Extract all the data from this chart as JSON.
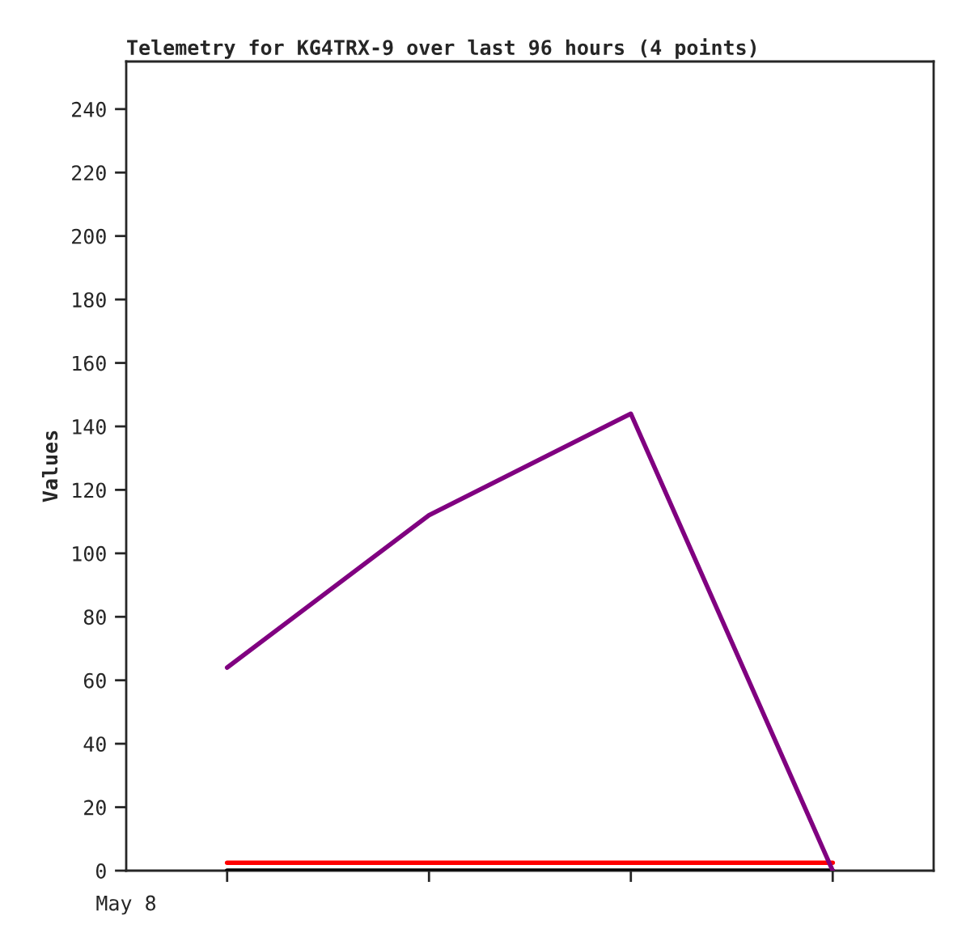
{
  "chart_data": {
    "type": "line",
    "title": "Telemetry for KG4TRX-9 over last 96 hours (4 points)",
    "ylabel": "Values",
    "categories": [
      null,
      null,
      null,
      null
    ],
    "annotations": [
      "May 8"
    ],
    "series": [
      {
        "color": "#800080",
        "values": [
          64,
          112,
          144,
          0
        ]
      },
      {
        "color": "#ff0000",
        "values": [
          2.5,
          2.5,
          2.5,
          2.5
        ]
      },
      {
        "color": "#000000",
        "values": [
          0,
          0,
          0,
          0
        ]
      }
    ],
    "ylim": [
      0,
      255
    ],
    "yticks": [
      0,
      20,
      40,
      60,
      80,
      100,
      120,
      140,
      160,
      180,
      200,
      220,
      240
    ],
    "grid": false,
    "legend": false,
    "marker": "none",
    "line_style": "solid"
  }
}
